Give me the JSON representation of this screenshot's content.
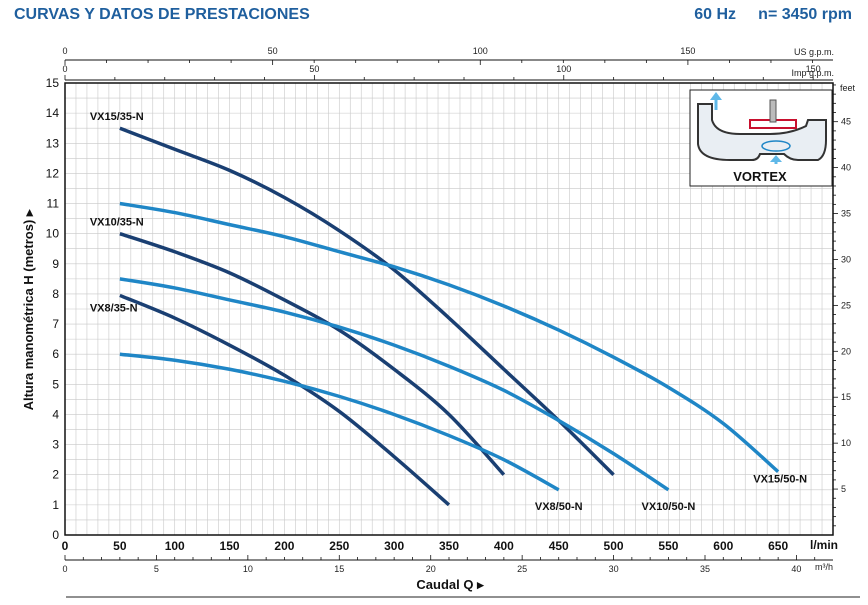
{
  "header": {
    "title": "CURVAS Y DATOS DE PRESTACIONES",
    "frequency": "60 Hz",
    "speed": "n= 3450 rpm"
  },
  "axes": {
    "x_primary_unit": "l/min",
    "x_secondary_unit": "m³/h",
    "top1_unit": "US g.p.m.",
    "top2_unit": "Imp g.p.m.",
    "y_left_label": "Altura manométrica H (metros) ▸",
    "y_right_unit": "feet",
    "x_label": "Caudal Q ▸"
  },
  "inset": {
    "label": "VORTEX",
    "icon": "vortex-impeller-diagram"
  },
  "colors": {
    "header": "#1f5f9e",
    "dark_series": "#1a3f72",
    "light_series": "#1f86c6",
    "grid": "#c8c8c8"
  },
  "chart_data": {
    "type": "line",
    "xlabel": "Caudal Q ▸",
    "ylabel": "Altura manométrica H (metros) ▸",
    "xlim": [
      0,
      700
    ],
    "ylim": [
      0,
      15
    ],
    "x_ticks": [
      0,
      50,
      100,
      150,
      200,
      250,
      300,
      350,
      400,
      450,
      500,
      550,
      600,
      650
    ],
    "y_ticks": [
      0,
      1,
      2,
      3,
      4,
      5,
      6,
      7,
      8,
      9,
      10,
      11,
      12,
      13,
      14,
      15
    ],
    "m3h_ticks": [
      0,
      5,
      10,
      15,
      20,
      25,
      30,
      35,
      40
    ],
    "usgpm_ticks": [
      0,
      50,
      100,
      150
    ],
    "impgpm_ticks": [
      0,
      50,
      100,
      150
    ],
    "feet_ticks": [
      5,
      10,
      15,
      20,
      25,
      30,
      35,
      40,
      45
    ],
    "grid": true,
    "series": [
      {
        "name": "VX15/35-N",
        "style": "dark",
        "x": [
          50,
          100,
          150,
          200,
          250,
          300,
          350,
          400,
          450,
          500
        ],
        "y": [
          13.5,
          12.8,
          12.1,
          11.2,
          10.1,
          8.8,
          7.2,
          5.5,
          3.8,
          2.0
        ]
      },
      {
        "name": "VX10/35-N",
        "style": "dark",
        "x": [
          50,
          100,
          150,
          200,
          250,
          300,
          350,
          400
        ],
        "y": [
          10.0,
          9.4,
          8.7,
          7.8,
          6.8,
          5.5,
          4.0,
          2.0
        ]
      },
      {
        "name": "VX8/35-N",
        "style": "dark",
        "x": [
          50,
          100,
          150,
          200,
          250,
          300,
          350
        ],
        "y": [
          7.95,
          7.2,
          6.3,
          5.3,
          4.1,
          2.6,
          1.0
        ]
      },
      {
        "name": "VX15/50-N",
        "style": "light",
        "x": [
          50,
          100,
          150,
          200,
          250,
          300,
          350,
          400,
          450,
          500,
          550,
          600,
          650
        ],
        "y": [
          11.0,
          10.7,
          10.3,
          9.9,
          9.4,
          8.9,
          8.3,
          7.6,
          6.8,
          5.9,
          4.9,
          3.7,
          2.1
        ]
      },
      {
        "name": "VX10/50-N",
        "style": "light",
        "x": [
          50,
          100,
          150,
          200,
          250,
          300,
          350,
          400,
          450,
          500,
          550
        ],
        "y": [
          8.5,
          8.2,
          7.8,
          7.4,
          6.9,
          6.3,
          5.6,
          4.8,
          3.8,
          2.7,
          1.5
        ]
      },
      {
        "name": "VX8/50-N",
        "style": "light",
        "x": [
          50,
          100,
          150,
          200,
          250,
          300,
          350,
          400,
          450
        ],
        "y": [
          6.0,
          5.8,
          5.5,
          5.1,
          4.6,
          4.0,
          3.3,
          2.5,
          1.5
        ]
      }
    ]
  }
}
